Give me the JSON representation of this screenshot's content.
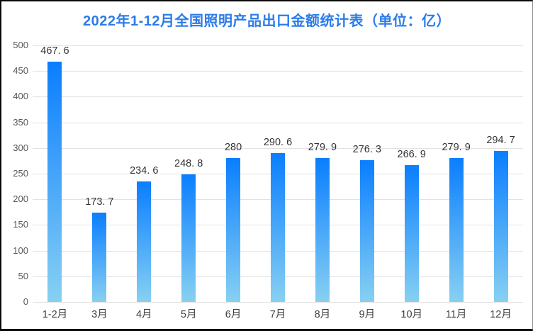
{
  "chart_data": {
    "type": "bar",
    "title": "2022年1-12月全国照明产品出口金额统计表（单位：亿）",
    "categories": [
      "1-2月",
      "3月",
      "4月",
      "5月",
      "6月",
      "7月",
      "8月",
      "9月",
      "10月",
      "11月",
      "12月"
    ],
    "values": [
      467.6,
      173.7,
      234.6,
      248.8,
      280,
      290.6,
      279.9,
      276.3,
      266.9,
      279.9,
      294.7
    ],
    "value_labels": [
      "467. 6",
      "173. 7",
      "234. 6",
      "248. 8",
      "280",
      "290. 6",
      "279. 9",
      "276. 3",
      "266. 9",
      "279. 9",
      "294. 7"
    ],
    "xlabel": "",
    "ylabel": "",
    "ylim": [
      0,
      500
    ],
    "ytick_step": 50,
    "ytick_labels": [
      "0",
      "50",
      "100",
      "150",
      "200",
      "250",
      "300",
      "350",
      "400",
      "450",
      "500"
    ],
    "grid": true,
    "legend_position": "none",
    "colors": {
      "title": "#2b7ce9",
      "bar_gradient_top": "#0a7eff",
      "bar_gradient_bottom": "#87d0f2",
      "gridline": "#e2e2e2",
      "ytick_label": "#595959",
      "xtick_label": "#3f3f3f",
      "value_label": "#333333",
      "background": "#ffffff",
      "frame_border": "#0a0a0a"
    }
  }
}
